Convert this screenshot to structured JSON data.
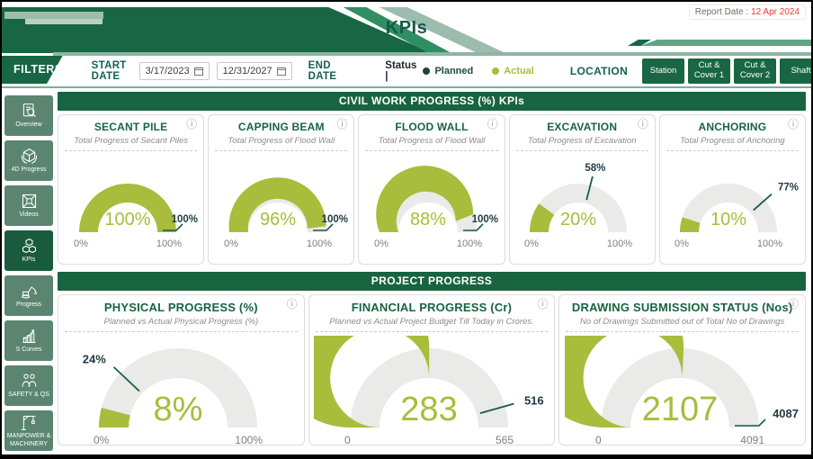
{
  "page": {
    "title": "KPIs"
  },
  "report_date": {
    "label": "Report Date :",
    "value": "12 Apr 2024"
  },
  "colors": {
    "brand_dark_green": "#186440",
    "sidebar_green": "#5B8570",
    "actual": "#A7BD3B",
    "planned_dot": "#234236",
    "track": "#EAEAE8",
    "axis": "#7E7E7E",
    "callout": "#1E3A40",
    "tick": "#1A5A4A",
    "report_date_red": "#E03C31"
  },
  "filters": {
    "tab_label": "FILTERS",
    "start_date_label": "START DATE",
    "end_date_label": "END DATE",
    "start_date_value": "3/17/2023",
    "end_date_value": "12/31/2027",
    "status_label": "Status |",
    "legend": [
      {
        "label": "Planned",
        "color": "#234236"
      },
      {
        "label": "Actual",
        "color": "#A7BD3B"
      }
    ],
    "location_label": "LOCATION",
    "location_buttons": [
      "Station",
      "Cut & Cover 1",
      "Cut & Cover 2",
      "Shaft"
    ]
  },
  "sidebar": {
    "items": [
      {
        "label": "Overview",
        "icon": "overview-icon",
        "active": false
      },
      {
        "label": "4D Progress",
        "icon": "4d-progress-icon",
        "active": false
      },
      {
        "label": "Videos",
        "icon": "videos-icon",
        "active": false
      },
      {
        "label": "KPIs",
        "icon": "kpis-icon",
        "active": true
      },
      {
        "label": "Progress",
        "icon": "progress-icon",
        "active": false
      },
      {
        "label": "S Curves",
        "icon": "s-curves-icon",
        "active": false
      },
      {
        "label": "SAFETY & QS",
        "icon": "safety-qs-icon",
        "active": false
      },
      {
        "label": "MANPOWER & MACHINERY",
        "icon": "manpower-machinery-icon",
        "active": false
      }
    ]
  },
  "sections": [
    {
      "title": "CIVIL WORK PROGRESS (%) KPIs"
    },
    {
      "title": "PROJECT PROGRESS"
    }
  ],
  "icons": {
    "info": "ⓘ"
  },
  "chart_data": [
    {
      "type": "gauge",
      "section": "CIVIL WORK PROGRESS (%) KPIs",
      "title": "SECANT PILE",
      "subtitle": "Total Progress of Secant Piles",
      "value": 100,
      "value_label": "100%",
      "target": 100,
      "target_label": "100%",
      "gauge_min": 0,
      "gauge_max": 100,
      "min_label": "0%",
      "max_label": "100%"
    },
    {
      "type": "gauge",
      "section": "CIVIL WORK PROGRESS (%) KPIs",
      "title": "CAPPING BEAM",
      "subtitle": "Total Progress of Flood Wall",
      "value": 96,
      "value_label": "96%",
      "target": 100,
      "target_label": "100%",
      "gauge_min": 0,
      "gauge_max": 100,
      "min_label": "0%",
      "max_label": "100%"
    },
    {
      "type": "gauge",
      "section": "CIVIL WORK PROGRESS (%) KPIs",
      "title": "FLOOD WALL",
      "subtitle": "Total Progress of Flood Wall",
      "value": 88,
      "value_label": "88%",
      "target": 100,
      "target_label": "100%",
      "gauge_min": 0,
      "gauge_max": 100,
      "min_label": "0%",
      "max_label": "100%"
    },
    {
      "type": "gauge",
      "section": "CIVIL WORK PROGRESS (%) KPIs",
      "title": "EXCAVATION",
      "subtitle": "Total Progress of Excavation",
      "value": 20,
      "value_label": "20%",
      "target": 58,
      "target_label": "58%",
      "gauge_min": 0,
      "gauge_max": 100,
      "min_label": "0%",
      "max_label": "100%"
    },
    {
      "type": "gauge",
      "section": "CIVIL WORK PROGRESS (%) KPIs",
      "title": "ANCHORING",
      "subtitle": "Total Progress of Anchoring",
      "value": 10,
      "value_label": "10%",
      "target": 77,
      "target_label": "77%",
      "gauge_min": 0,
      "gauge_max": 100,
      "min_label": "0%",
      "max_label": "100%"
    },
    {
      "type": "gauge",
      "section": "PROJECT PROGRESS",
      "title": "PHYSICAL PROGRESS (%)",
      "subtitle": "Planned vs Actual Physical Progress (%)",
      "value": 8,
      "value_label": "8%",
      "target": 24,
      "target_label": "24%",
      "gauge_min": 0,
      "gauge_max": 100,
      "min_label": "0%",
      "max_label": "100%"
    },
    {
      "type": "gauge",
      "section": "PROJECT PROGRESS",
      "title": "FINANCIAL PROGRESS (Cr)",
      "subtitle": "Planned vs Actual Project Budget Till Today in Crores.",
      "value": 283,
      "value_label": "283",
      "target": 516,
      "target_label": "516",
      "gauge_min": 0,
      "gauge_max": 565,
      "min_label": "0",
      "max_label": "565"
    },
    {
      "type": "gauge",
      "section": "PROJECT PROGRESS",
      "title": "DRAWING SUBMISSION STATUS (Nos)",
      "subtitle": "No of Drawings Submitted out of Total No of Drawings",
      "value": 2107,
      "value_label": "2107",
      "target": 4087,
      "target_label": "4087",
      "gauge_min": 0,
      "gauge_max": 4091,
      "min_label": "0",
      "max_label": "4091"
    }
  ]
}
